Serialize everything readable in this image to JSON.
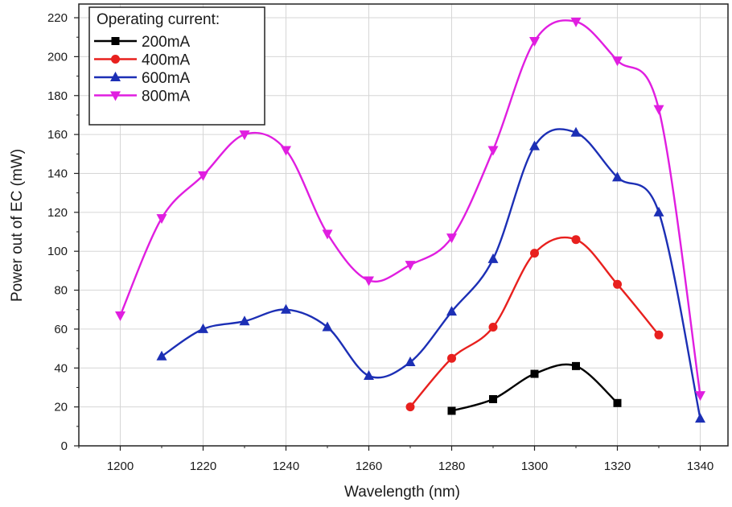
{
  "chart_data": {
    "type": "line",
    "xlabel": "Wavelength (nm)",
    "ylabel": "Power out of EC (mW)",
    "xlim": [
      1190,
      1345
    ],
    "ylim": [
      0,
      220
    ],
    "x_ticks": [
      1200,
      1220,
      1240,
      1260,
      1280,
      1300,
      1320,
      1340
    ],
    "y_ticks": [
      0,
      20,
      40,
      60,
      80,
      100,
      120,
      140,
      160,
      180,
      200,
      220
    ],
    "grid": true,
    "legend": {
      "title": "Operating current:",
      "placement": "top-left"
    },
    "series": [
      {
        "name": "200mA",
        "color": "#000000",
        "marker": "square",
        "points": [
          [
            1280,
            18
          ],
          [
            1290,
            24
          ],
          [
            1300,
            37
          ],
          [
            1310,
            41
          ],
          [
            1320,
            22
          ]
        ]
      },
      {
        "name": "400mA",
        "color": "#e8201e",
        "marker": "circle",
        "points": [
          [
            1270,
            20
          ],
          [
            1280,
            45
          ],
          [
            1290,
            61
          ],
          [
            1300,
            99
          ],
          [
            1310,
            106
          ],
          [
            1320,
            83
          ],
          [
            1330,
            57
          ]
        ]
      },
      {
        "name": "600mA",
        "color": "#1c2fb5",
        "marker": "triangle-up",
        "points": [
          [
            1210,
            46
          ],
          [
            1220,
            60
          ],
          [
            1230,
            64
          ],
          [
            1240,
            70
          ],
          [
            1250,
            61
          ],
          [
            1260,
            36
          ],
          [
            1270,
            43
          ],
          [
            1280,
            69
          ],
          [
            1290,
            96
          ],
          [
            1300,
            154
          ],
          [
            1310,
            161
          ],
          [
            1320,
            138
          ],
          [
            1330,
            120
          ],
          [
            1340,
            14
          ]
        ]
      },
      {
        "name": "800mA",
        "color": "#e01ee0",
        "marker": "triangle-down",
        "points": [
          [
            1200,
            67
          ],
          [
            1210,
            117
          ],
          [
            1220,
            139
          ],
          [
            1230,
            160
          ],
          [
            1240,
            152
          ],
          [
            1250,
            109
          ],
          [
            1260,
            85
          ],
          [
            1270,
            93
          ],
          [
            1280,
            107
          ],
          [
            1290,
            152
          ],
          [
            1300,
            208
          ],
          [
            1310,
            218
          ],
          [
            1320,
            198
          ],
          [
            1330,
            173
          ],
          [
            1340,
            26
          ]
        ]
      }
    ]
  }
}
